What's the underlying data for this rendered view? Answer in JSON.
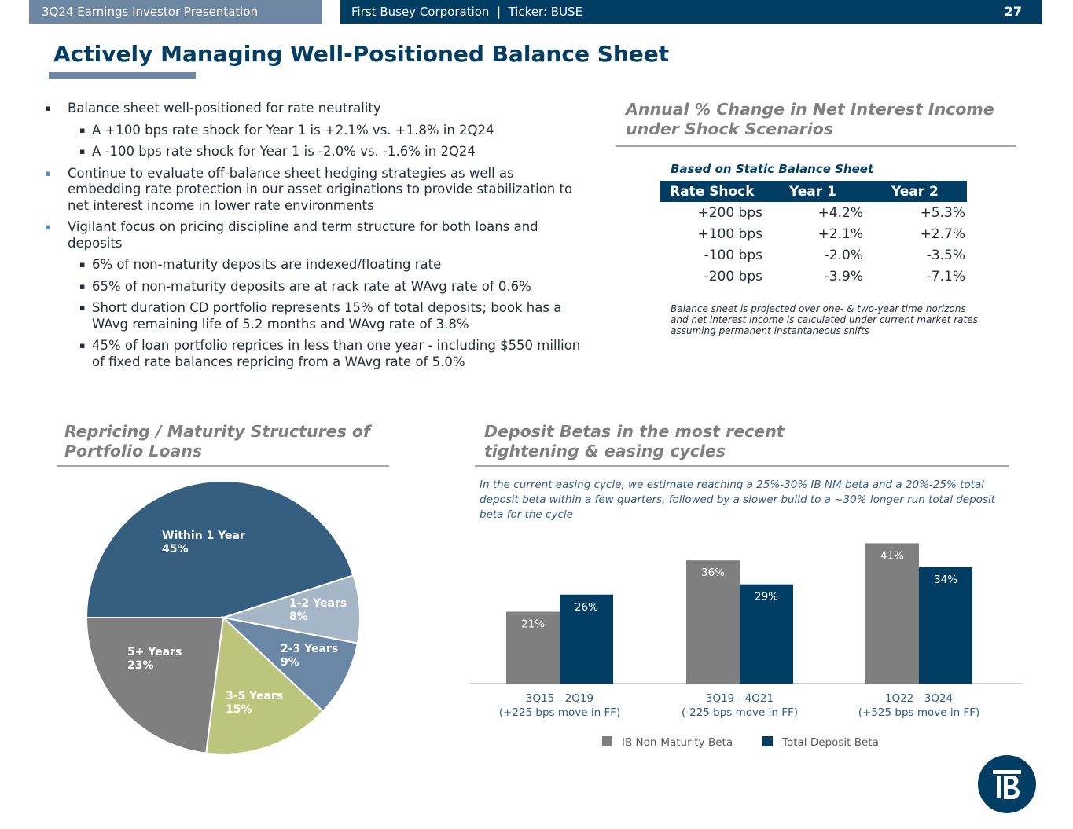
{
  "header": {
    "left_label": "3Q24 Earnings Investor Presentation",
    "company_line": "First Busey Corporation  |  Ticker: BUSE",
    "page_number": "27"
  },
  "title": "Actively Managing Well-Positioned Balance Sheet",
  "bullets": [
    {
      "level": 1,
      "text": "Balance sheet well-positioned for rate neutrality"
    },
    {
      "level": 2,
      "text": "A +100 bps rate shock for Year 1 is +2.1% vs. +1.8% in 2Q24"
    },
    {
      "level": 2,
      "text": "A -100 bps rate shock for Year 1 is -2.0% vs. -1.6% in 2Q24"
    },
    {
      "level": 1,
      "text": "Continue to evaluate off-balance sheet hedging strategies as well as embedding rate protection in our asset originations to provide stabilization to net interest income in lower rate environments"
    },
    {
      "level": 1,
      "text": "Vigilant focus on pricing discipline and term structure for both loans and deposits"
    },
    {
      "level": 2,
      "text": "6% of non-maturity deposits are indexed/floating rate"
    },
    {
      "level": 2,
      "text": "65% of non-maturity deposits are at rack rate at WAvg rate of 0.6%"
    },
    {
      "level": 2,
      "text": "Short duration CD portfolio represents 15% of total deposits; book has a WAvg remaining life of 5.2 months and WAvg rate of 3.8%"
    },
    {
      "level": 2,
      "text": "45% of loan portfolio reprices in less than one year - including $550 million of fixed rate balances repricing from a WAvg rate of 5.0%"
    }
  ],
  "nii": {
    "title_line1": "Annual % Change in Net Interest Income",
    "title_line2": "under Shock Scenarios",
    "table_title": "Based on Static Balance Sheet",
    "headers": [
      "Rate Shock",
      "Year 1",
      "Year 2"
    ],
    "rows": [
      [
        "+200 bps",
        "+4.2%",
        "+5.3%"
      ],
      [
        "+100 bps",
        "+2.1%",
        "+2.7%"
      ],
      [
        "-100 bps",
        "-2.0%",
        "-3.5%"
      ],
      [
        "-200 bps",
        "-3.9%",
        "-7.1%"
      ]
    ],
    "note": "Balance sheet is projected over one- & two-year time horizons and net interest income is calculated under current market rates assuming permanent instantaneous shifts"
  },
  "repricing": {
    "title_line1": "Repricing / Maturity Structures of",
    "title_line2": "Portfolio Loans"
  },
  "deposit": {
    "title_line1": "Deposit Betas in the most recent",
    "title_line2": "tightening & easing cycles",
    "note": "In the current easing cycle, we estimate reaching a 25%-30% IB NM beta and a 20%-25% total deposit beta within a few quarters, followed by a slower build to a ~30% longer run total deposit beta for the cycle"
  },
  "colors": {
    "navy": "#023d63",
    "slate": "#6d87a3",
    "pie_within": "#355f80",
    "pie_1_2": "#a5b7c6",
    "pie_2_3": "#6a87a5",
    "pie_3_5": "#bcc57b",
    "pie_5plus": "#7f7f80",
    "bar_gray": "#7f7f80"
  },
  "chart_data": [
    {
      "type": "pie",
      "title": "Repricing / Maturity Structures of Portfolio Loans",
      "slices": [
        {
          "name": "Within 1 Year",
          "value": 45,
          "label": "45%",
          "lines": [
            "Within 1 Year",
            "45%"
          ],
          "color": "#355f80"
        },
        {
          "name": "1-2 Years",
          "value": 8,
          "label": "8%",
          "lines": [
            "1-2 Years",
            "8%"
          ],
          "color": "#a5b7c6"
        },
        {
          "name": "2-3 Years",
          "value": 9,
          "label": "9%",
          "lines": [
            "2-3  Years",
            "9%"
          ],
          "color": "#6a87a5"
        },
        {
          "name": "3-5 Years",
          "value": 15,
          "label": "15%",
          "lines": [
            "3-5 Years",
            "15%"
          ],
          "color": "#bcc57b"
        },
        {
          "name": "5+ Years",
          "value": 23,
          "label": "23%",
          "lines": [
            "5+ Years",
            "23%"
          ],
          "color": "#7f7f80"
        }
      ]
    },
    {
      "type": "bar",
      "title": "Deposit Betas in the most recent tightening & easing cycles",
      "categories": [
        [
          "3Q15 - 2Q19",
          "(+225 bps move in FF)"
        ],
        [
          "3Q19 - 4Q21",
          "(-225 bps move in FF)"
        ],
        [
          "1Q22 - 3Q24",
          "(+525 bps move in FF)"
        ]
      ],
      "series": [
        {
          "name": "IB Non-Maturity Beta",
          "values": [
            21,
            36,
            41
          ],
          "labels": [
            "21%",
            "36%",
            "41%"
          ],
          "color": "#7f7f80"
        },
        {
          "name": "Total Deposit Beta",
          "values": [
            26,
            29,
            34
          ],
          "labels": [
            "26%",
            "29%",
            "34%"
          ],
          "color": "#023d63"
        }
      ],
      "ylim": [
        0,
        45
      ],
      "legend": "bottom"
    }
  ]
}
